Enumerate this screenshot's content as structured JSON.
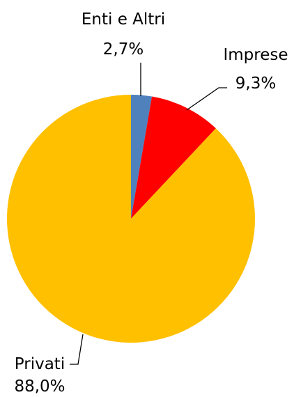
{
  "chart_data": {
    "type": "pie",
    "title": "",
    "slices": [
      {
        "name": "Enti e Altri",
        "value": 2.7,
        "label": "2,7%",
        "color": "#4f81bd"
      },
      {
        "name": "Imprese",
        "value": 9.3,
        "label": "9,3%",
        "color": "#ff0000"
      },
      {
        "name": "Privati",
        "value": 88.0,
        "label": "88,0%",
        "color": "#ffc000"
      }
    ],
    "start_angle_deg": 0,
    "direction": "clockwise",
    "legend": "none"
  }
}
